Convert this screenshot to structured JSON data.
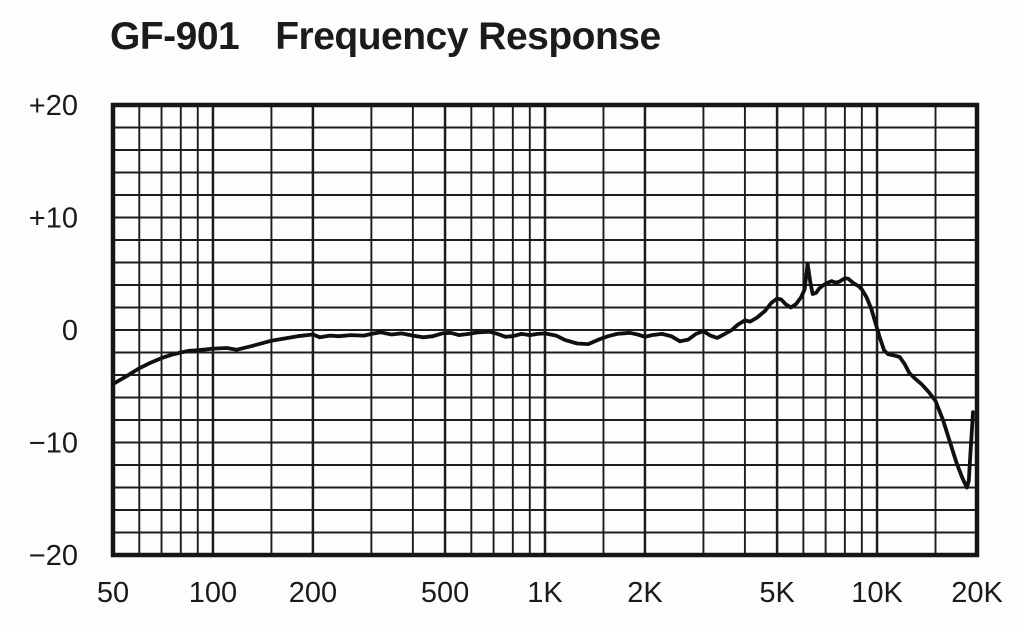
{
  "title": {
    "model": "GF-901",
    "text": "Frequency Response"
  },
  "chart_data": {
    "type": "line",
    "title": "GF-901 Frequency Response",
    "xlabel": "",
    "ylabel": "",
    "x_scale": "log",
    "x_range": [
      50,
      20000
    ],
    "y_range": [
      -20,
      20
    ],
    "grid": "on",
    "legend": "none",
    "y_grid_step_db": 2,
    "x_grid_lines_hz": [
      50,
      60,
      70,
      80,
      90,
      100,
      150,
      200,
      300,
      400,
      500,
      600,
      700,
      800,
      900,
      1000,
      1500,
      2000,
      3000,
      4000,
      5000,
      6000,
      7000,
      8000,
      9000,
      10000,
      15000,
      20000
    ],
    "x_major_lines_hz": [
      50,
      100,
      200,
      500,
      1000,
      2000,
      5000,
      10000,
      20000
    ],
    "x_ticks": [
      {
        "hz": 50,
        "label": "50"
      },
      {
        "hz": 100,
        "label": "100"
      },
      {
        "hz": 200,
        "label": "200"
      },
      {
        "hz": 500,
        "label": "500"
      },
      {
        "hz": 1000,
        "label": "1K"
      },
      {
        "hz": 2000,
        "label": "2K"
      },
      {
        "hz": 5000,
        "label": "5K"
      },
      {
        "hz": 10000,
        "label": "10K"
      },
      {
        "hz": 20000,
        "label": "20K"
      }
    ],
    "y_ticks": [
      {
        "db": 20,
        "label": "+20"
      },
      {
        "db": 10,
        "label": "+10"
      },
      {
        "db": 0,
        "label": "0"
      },
      {
        "db": -10,
        "label": "−10"
      },
      {
        "db": -20,
        "label": "−20"
      }
    ],
    "series": [
      {
        "name": "frequency-response-curve",
        "points_hz_db": [
          [
            50,
            -4.8
          ],
          [
            55,
            -4.1
          ],
          [
            60,
            -3.4
          ],
          [
            65,
            -2.9
          ],
          [
            70,
            -2.5
          ],
          [
            75,
            -2.2
          ],
          [
            80,
            -2.0
          ],
          [
            85,
            -1.85
          ],
          [
            90,
            -1.8
          ],
          [
            100,
            -1.65
          ],
          [
            110,
            -1.6
          ],
          [
            118,
            -1.75
          ],
          [
            130,
            -1.45
          ],
          [
            150,
            -0.95
          ],
          [
            165,
            -0.75
          ],
          [
            180,
            -0.55
          ],
          [
            200,
            -0.4
          ],
          [
            210,
            -0.65
          ],
          [
            225,
            -0.5
          ],
          [
            240,
            -0.55
          ],
          [
            260,
            -0.45
          ],
          [
            285,
            -0.5
          ],
          [
            300,
            -0.35
          ],
          [
            320,
            -0.2
          ],
          [
            345,
            -0.4
          ],
          [
            370,
            -0.3
          ],
          [
            400,
            -0.5
          ],
          [
            430,
            -0.65
          ],
          [
            460,
            -0.55
          ],
          [
            490,
            -0.3
          ],
          [
            520,
            -0.25
          ],
          [
            550,
            -0.45
          ],
          [
            590,
            -0.35
          ],
          [
            630,
            -0.2
          ],
          [
            680,
            -0.15
          ],
          [
            720,
            -0.35
          ],
          [
            760,
            -0.6
          ],
          [
            800,
            -0.55
          ],
          [
            850,
            -0.35
          ],
          [
            900,
            -0.45
          ],
          [
            950,
            -0.35
          ],
          [
            1000,
            -0.3
          ],
          [
            1080,
            -0.5
          ],
          [
            1150,
            -0.9
          ],
          [
            1250,
            -1.2
          ],
          [
            1350,
            -1.25
          ],
          [
            1450,
            -0.85
          ],
          [
            1550,
            -0.55
          ],
          [
            1650,
            -0.35
          ],
          [
            1800,
            -0.25
          ],
          [
            1900,
            -0.4
          ],
          [
            2000,
            -0.6
          ],
          [
            2100,
            -0.45
          ],
          [
            2250,
            -0.35
          ],
          [
            2400,
            -0.55
          ],
          [
            2550,
            -1.0
          ],
          [
            2700,
            -0.85
          ],
          [
            2850,
            -0.35
          ],
          [
            3000,
            -0.1
          ],
          [
            3150,
            -0.5
          ],
          [
            3300,
            -0.7
          ],
          [
            3500,
            -0.3
          ],
          [
            3650,
            0.0
          ],
          [
            3800,
            0.45
          ],
          [
            4000,
            0.85
          ],
          [
            4150,
            0.75
          ],
          [
            4350,
            1.1
          ],
          [
            4600,
            1.7
          ],
          [
            4800,
            2.4
          ],
          [
            5000,
            2.8
          ],
          [
            5150,
            2.7
          ],
          [
            5300,
            2.3
          ],
          [
            5500,
            2.0
          ],
          [
            5700,
            2.3
          ],
          [
            5900,
            2.9
          ],
          [
            6050,
            3.6
          ],
          [
            6180,
            5.9
          ],
          [
            6300,
            4.2
          ],
          [
            6400,
            3.2
          ],
          [
            6550,
            3.3
          ],
          [
            6700,
            3.7
          ],
          [
            6900,
            4.0
          ],
          [
            7100,
            4.2
          ],
          [
            7300,
            4.35
          ],
          [
            7500,
            4.2
          ],
          [
            7700,
            4.3
          ],
          [
            8000,
            4.6
          ],
          [
            8200,
            4.55
          ],
          [
            8500,
            4.15
          ],
          [
            8800,
            3.9
          ],
          [
            9000,
            3.6
          ],
          [
            9300,
            2.9
          ],
          [
            9600,
            1.9
          ],
          [
            9900,
            0.6
          ],
          [
            10200,
            -0.7
          ],
          [
            10500,
            -1.8
          ],
          [
            10800,
            -2.15
          ],
          [
            11200,
            -2.25
          ],
          [
            11700,
            -2.4
          ],
          [
            12100,
            -3.0
          ],
          [
            12500,
            -3.8
          ],
          [
            13000,
            -4.3
          ],
          [
            13600,
            -4.8
          ],
          [
            14300,
            -5.5
          ],
          [
            15000,
            -6.3
          ],
          [
            15800,
            -8.0
          ],
          [
            16600,
            -10.0
          ],
          [
            17400,
            -11.9
          ],
          [
            18100,
            -13.2
          ],
          [
            18650,
            -14.0
          ],
          [
            18900,
            -13.4
          ],
          [
            19100,
            -11.0
          ],
          [
            19450,
            -7.3
          ]
        ]
      }
    ],
    "colors": {
      "background": "#fdfdfc",
      "grid": "#1d1d1d",
      "border": "#161616",
      "curve": "#101010",
      "text": "#1a1a1a"
    }
  }
}
